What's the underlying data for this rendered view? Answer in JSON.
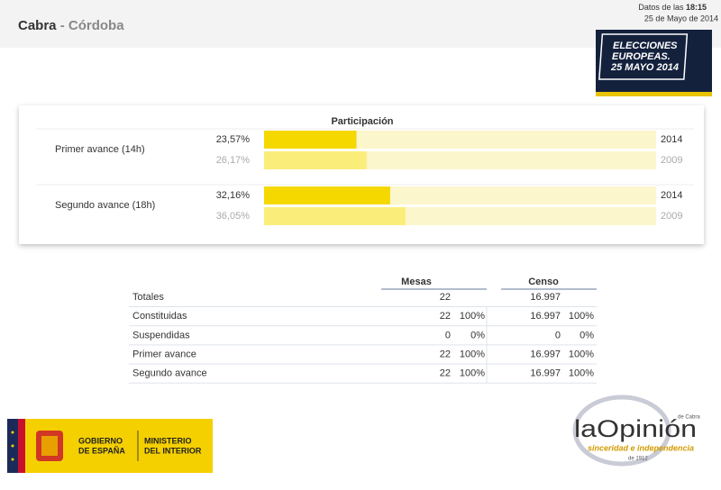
{
  "header": {
    "town": "Cabra",
    "separator": "-",
    "province": "Córdoba",
    "timestamp_prefix": "Datos de las",
    "time": "18:15",
    "date": "25 de Mayo de 2014"
  },
  "badge": {
    "lines": [
      "ELECCIONES",
      "EUROPEAS.",
      "25 MAYO 2014"
    ]
  },
  "chart_data": {
    "type": "bar",
    "title": "Participación",
    "categories": [
      "Primer avance (14h)",
      "Segundo avance (18h)"
    ],
    "series": [
      {
        "name": "2014",
        "color": "#f5d800",
        "values": [
          23.57,
          32.16
        ],
        "value_labels": [
          "23,57%",
          "32,16%"
        ]
      },
      {
        "name": "2009",
        "color": "#fbed7a",
        "values": [
          26.17,
          36.05
        ],
        "value_labels": [
          "26,17%",
          "36,05%"
        ]
      }
    ],
    "xlim": [
      0,
      100
    ]
  },
  "table": {
    "columns": [
      "Mesas",
      "Censo"
    ],
    "rows": [
      {
        "label": "Totales",
        "mesas": "22",
        "censo": "16.997"
      },
      {
        "label": "Constituidas",
        "mesas": "22",
        "mesas_pct": "100%",
        "censo": "16.997",
        "censo_pct": "100%"
      },
      {
        "label": "Suspendidas",
        "mesas": "0",
        "mesas_pct": "0%",
        "censo": "0",
        "censo_pct": "0%"
      },
      {
        "label": "Primer avance",
        "mesas": "22",
        "mesas_pct": "100%",
        "censo": "16.997",
        "censo_pct": "100%"
      },
      {
        "label": "Segundo avance",
        "mesas": "22",
        "mesas_pct": "100%",
        "censo": "16.997",
        "censo_pct": "100%"
      }
    ]
  },
  "logos": {
    "government": [
      "GOBIERNO",
      "DE ESPAÑA"
    ],
    "ministry": [
      "MINISTERIO",
      "DEL INTERIOR"
    ],
    "newspaper": {
      "name": "laOpinión",
      "edition": "de Cabra",
      "tagline": "sinceridad e independencia",
      "since": "de 1912"
    }
  }
}
